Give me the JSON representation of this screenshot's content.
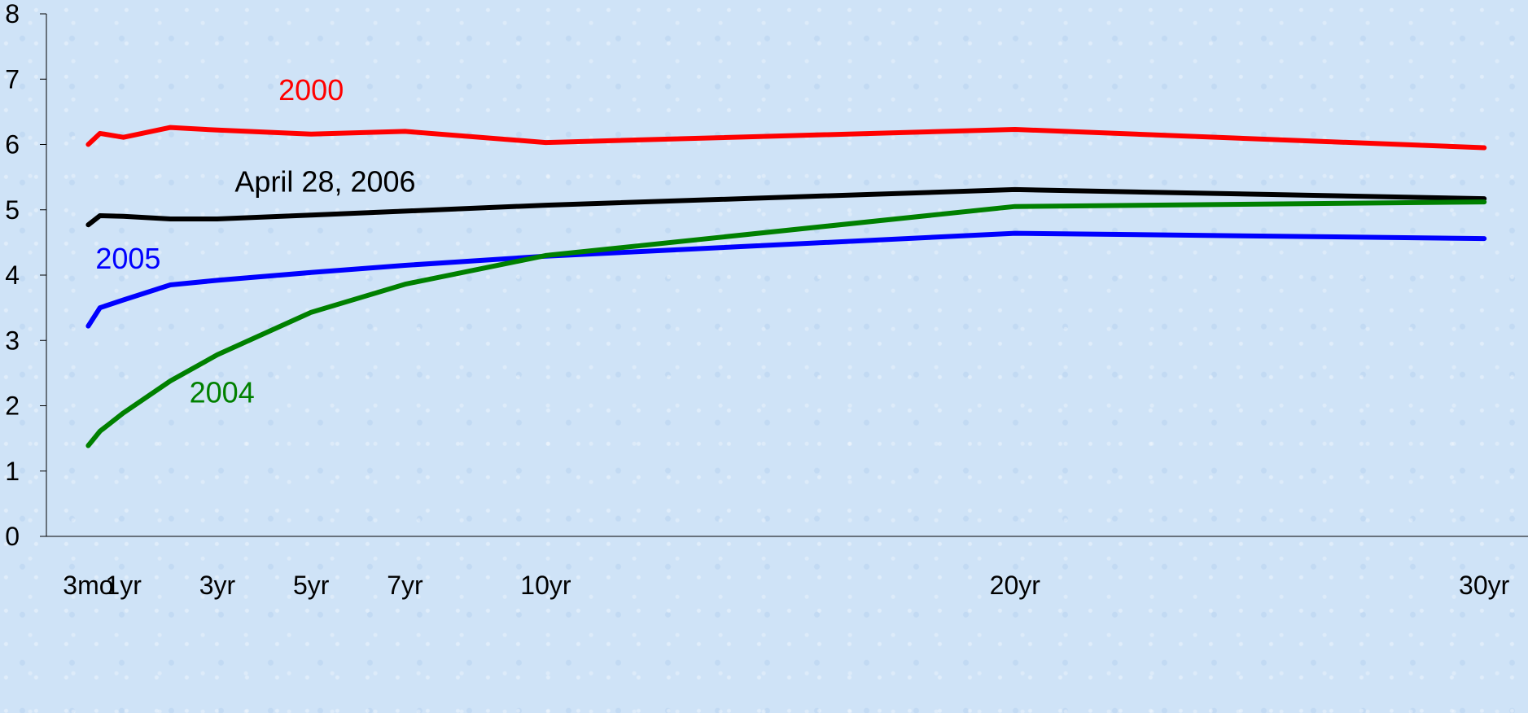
{
  "chart_data": {
    "type": "line",
    "title": "",
    "xlabel": "",
    "ylabel": "",
    "ylim": [
      0,
      8
    ],
    "y_ticks": [
      "0",
      "1",
      "2",
      "3",
      "4",
      "5",
      "6",
      "7",
      "8"
    ],
    "x_ticks": [
      {
        "label": "3mo",
        "x": 0.25
      },
      {
        "label": "1yr",
        "x": 1
      },
      {
        "label": "3yr",
        "x": 3
      },
      {
        "label": "5yr",
        "x": 5
      },
      {
        "label": "7yr",
        "x": 7
      },
      {
        "label": "10yr",
        "x": 10
      },
      {
        "label": "20yr",
        "x": 20
      },
      {
        "label": "30yr",
        "x": 30
      }
    ],
    "maturities": [
      0.25,
      0.5,
      1,
      2,
      3,
      5,
      7,
      10,
      20,
      30
    ],
    "grid": false,
    "series": [
      {
        "name": "2000",
        "color": "#ff0000",
        "values": [
          6.0,
          6.17,
          6.11,
          6.26,
          6.22,
          6.16,
          6.2,
          6.03,
          6.23,
          5.95
        ]
      },
      {
        "name": "April 28, 2006",
        "color": "#000000",
        "values": [
          4.77,
          4.91,
          4.9,
          4.86,
          4.86,
          4.92,
          4.98,
          5.07,
          5.31,
          5.17
        ]
      },
      {
        "name": "2005",
        "color": "#0000ff",
        "values": [
          3.22,
          3.5,
          3.62,
          3.85,
          3.92,
          4.04,
          4.15,
          4.29,
          4.64,
          4.56
        ]
      },
      {
        "name": "2004",
        "color": "#008000",
        "values": [
          1.39,
          1.61,
          1.89,
          2.38,
          2.78,
          3.43,
          3.86,
          4.3,
          5.05,
          5.12
        ]
      }
    ],
    "annotations": [
      {
        "text": "2000",
        "color": "#ff0000",
        "x": 5,
        "y": 6.68
      },
      {
        "text": "April 28, 2006",
        "color": "#000000",
        "x": 5.3,
        "y": 5.28
      },
      {
        "text": "2005",
        "color": "#0000ff",
        "x": 1.1,
        "y": 4.1
      },
      {
        "text": "2004",
        "color": "#008000",
        "x": 3.1,
        "y": 2.05
      }
    ]
  }
}
